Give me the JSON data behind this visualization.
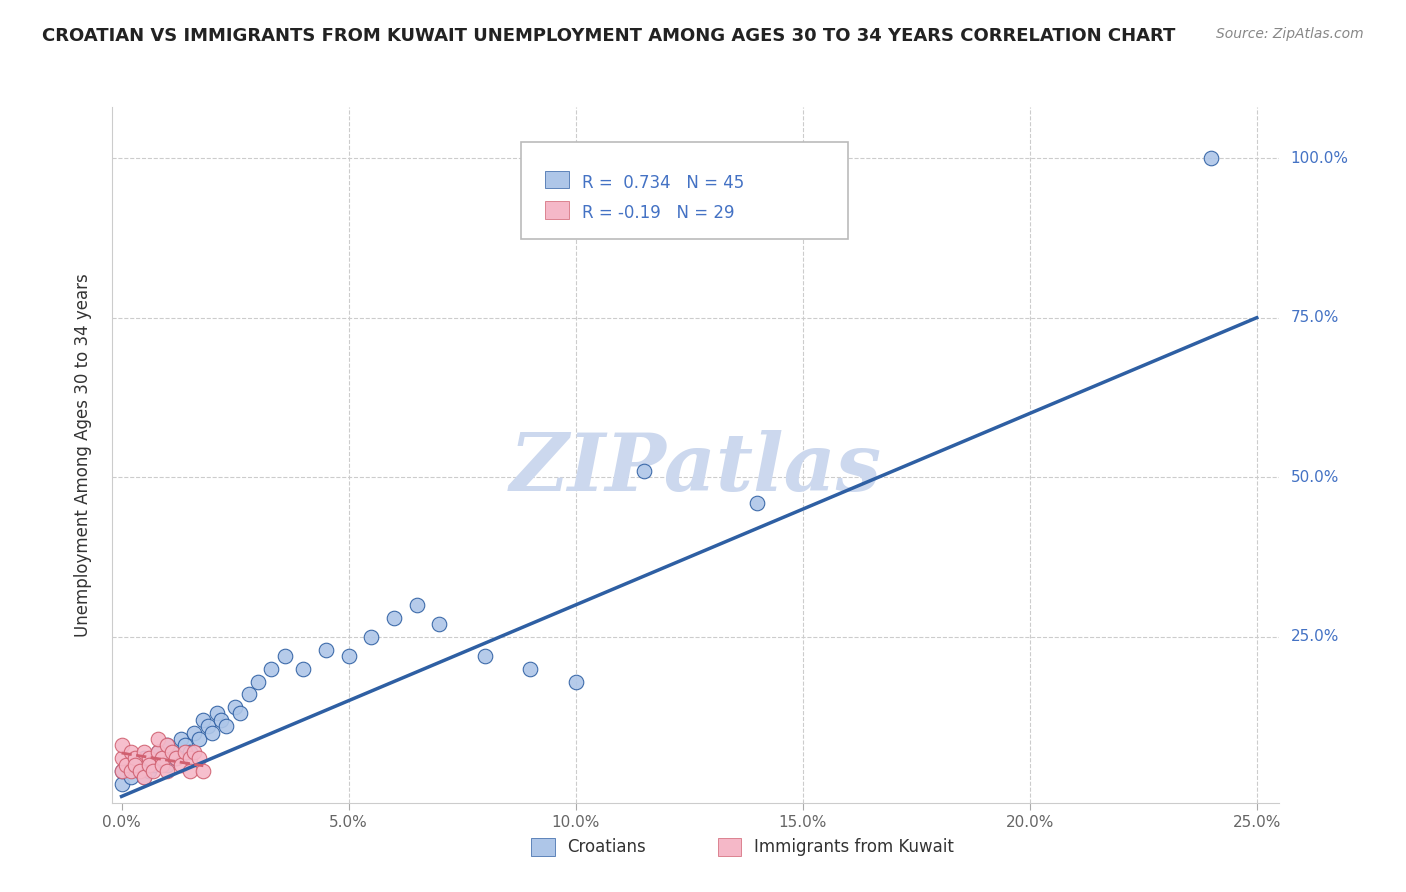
{
  "title": "CROATIAN VS IMMIGRANTS FROM KUWAIT UNEMPLOYMENT AMONG AGES 30 TO 34 YEARS CORRELATION CHART",
  "source": "Source: ZipAtlas.com",
  "ylabel": "Unemployment Among Ages 30 to 34 years",
  "legend_croatians": "Croatians",
  "legend_kuwait": "Immigrants from Kuwait",
  "r_croatians": 0.734,
  "n_croatians": 45,
  "r_kuwait": -0.19,
  "n_kuwait": 29,
  "xlim": [
    -0.002,
    0.255
  ],
  "ylim": [
    -0.01,
    1.08
  ],
  "xticks": [
    0.0,
    0.05,
    0.1,
    0.15,
    0.2,
    0.25
  ],
  "yticks": [
    0.0,
    0.25,
    0.5,
    0.75,
    1.0
  ],
  "xticklabels": [
    "0.0%",
    "5.0%",
    "10.0%",
    "15.0%",
    "20.0%",
    "25.0%"
  ],
  "yticklabels_right": [
    "",
    "25.0%",
    "50.0%",
    "75.0%",
    "100.0%"
  ],
  "color_croatians": "#aec6e8",
  "color_kuwait": "#f5b8c8",
  "color_trend_croatians": "#2e5fa3",
  "color_trend_kuwait": "#d06070",
  "color_r_text": "#4472c4",
  "watermark_color": "#ccd8ee",
  "background_color": "#ffffff",
  "grid_color": "#cccccc",
  "watermark": "ZIPatlas",
  "croatians_x": [
    0.0,
    0.0,
    0.002,
    0.003,
    0.004,
    0.005,
    0.005,
    0.006,
    0.007,
    0.008,
    0.009,
    0.01,
    0.01,
    0.011,
    0.012,
    0.013,
    0.014,
    0.015,
    0.016,
    0.017,
    0.018,
    0.019,
    0.02,
    0.021,
    0.022,
    0.023,
    0.025,
    0.026,
    0.028,
    0.03,
    0.033,
    0.036,
    0.04,
    0.045,
    0.05,
    0.055,
    0.06,
    0.065,
    0.07,
    0.08,
    0.09,
    0.1,
    0.115,
    0.14,
    0.24
  ],
  "croatians_y": [
    0.02,
    0.04,
    0.03,
    0.05,
    0.04,
    0.03,
    0.06,
    0.04,
    0.05,
    0.07,
    0.06,
    0.05,
    0.08,
    0.07,
    0.06,
    0.09,
    0.08,
    0.07,
    0.1,
    0.09,
    0.12,
    0.11,
    0.1,
    0.13,
    0.12,
    0.11,
    0.14,
    0.13,
    0.16,
    0.18,
    0.2,
    0.22,
    0.2,
    0.23,
    0.22,
    0.25,
    0.28,
    0.3,
    0.27,
    0.22,
    0.2,
    0.18,
    0.51,
    0.46,
    1.0
  ],
  "kuwait_x": [
    0.0,
    0.0,
    0.0,
    0.001,
    0.002,
    0.002,
    0.003,
    0.003,
    0.004,
    0.005,
    0.005,
    0.006,
    0.006,
    0.007,
    0.008,
    0.008,
    0.009,
    0.009,
    0.01,
    0.01,
    0.011,
    0.012,
    0.013,
    0.014,
    0.015,
    0.015,
    0.016,
    0.017,
    0.018
  ],
  "kuwait_y": [
    0.04,
    0.06,
    0.08,
    0.05,
    0.07,
    0.04,
    0.06,
    0.05,
    0.04,
    0.07,
    0.03,
    0.06,
    0.05,
    0.04,
    0.07,
    0.09,
    0.06,
    0.05,
    0.08,
    0.04,
    0.07,
    0.06,
    0.05,
    0.07,
    0.06,
    0.04,
    0.07,
    0.06,
    0.04
  ],
  "trend_c_x0": 0.0,
  "trend_c_y0": 0.0,
  "trend_c_x1": 0.25,
  "trend_c_y1": 0.75,
  "trend_k_x0": 0.0,
  "trend_k_y0": 0.068,
  "trend_k_x1": 0.018,
  "trend_k_y1": 0.048
}
